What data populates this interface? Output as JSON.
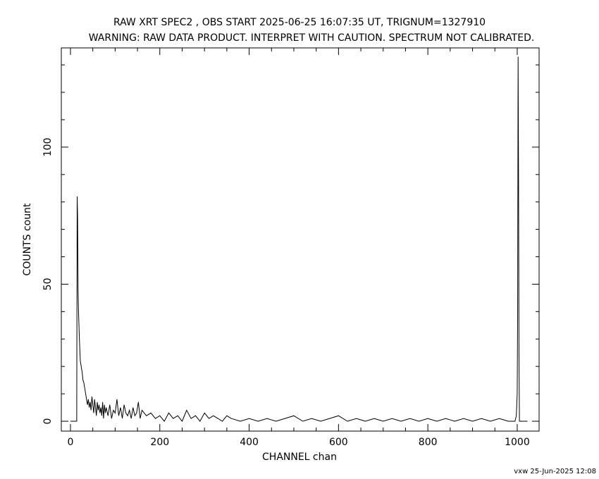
{
  "chart_data": {
    "type": "line",
    "title": "RAW XRT SPEC2 , OBS START 2025-06-25 16:07:35 UT, TRIGNUM=1327910",
    "subtitle": "WARNING: RAW DATA PRODUCT. INTERPRET WITH CAUTION. SPECTRUM NOT CALIBRATED.",
    "x_label": "CHANNEL  chan",
    "y_label": "COUNTS  count",
    "footer": "vxw 25-Jun-2025 12:08",
    "color": "#000000",
    "xlim": [
      -20.5,
      1049
    ],
    "ylim": [
      -3.6,
      136.2
    ],
    "xticks": [
      0,
      200,
      400,
      600,
      800,
      1000
    ],
    "yticks": [
      0,
      50,
      100
    ],
    "xminor": [
      50,
      100,
      150,
      250,
      300,
      350,
      450,
      500,
      550,
      650,
      700,
      750,
      850,
      900,
      950,
      1050
    ],
    "yminor": [
      10,
      20,
      30,
      40,
      60,
      70,
      80,
      90,
      110,
      120,
      130
    ],
    "x": [
      0,
      14,
      15,
      16,
      17,
      18,
      19,
      20,
      22,
      24,
      26,
      28,
      30,
      32,
      34,
      36,
      38,
      40,
      42,
      44,
      46,
      48,
      50,
      52,
      54,
      56,
      58,
      60,
      62,
      64,
      66,
      68,
      70,
      72,
      74,
      76,
      78,
      80,
      84,
      88,
      92,
      96,
      100,
      104,
      108,
      112,
      116,
      120,
      124,
      128,
      132,
      136,
      140,
      144,
      148,
      152,
      156,
      160,
      170,
      180,
      190,
      200,
      210,
      220,
      230,
      240,
      250,
      260,
      270,
      280,
      290,
      300,
      310,
      320,
      330,
      340,
      350,
      360,
      380,
      400,
      420,
      440,
      460,
      480,
      500,
      520,
      540,
      560,
      580,
      600,
      620,
      640,
      660,
      680,
      700,
      720,
      740,
      760,
      780,
      800,
      820,
      840,
      860,
      880,
      900,
      920,
      940,
      960,
      980,
      995,
      998,
      1000,
      1001,
      1002,
      1003,
      1004,
      1005,
      1023
    ],
    "values": [
      0,
      0,
      82,
      74,
      48,
      40,
      35,
      30,
      22,
      20,
      18,
      15,
      14,
      12,
      10,
      8,
      6,
      8,
      5,
      7,
      4,
      9,
      6,
      3,
      8,
      5,
      2,
      7,
      4,
      6,
      3,
      5,
      2,
      7,
      1,
      6,
      3,
      5,
      2,
      6,
      1,
      4,
      3,
      8,
      2,
      5,
      1,
      6,
      3,
      2,
      4,
      1,
      5,
      2,
      3,
      7,
      1,
      4,
      2,
      3,
      1,
      2,
      0,
      3,
      1,
      2,
      0,
      4,
      1,
      2,
      0,
      3,
      1,
      2,
      1,
      0,
      2,
      1,
      0,
      1,
      0,
      1,
      0,
      1,
      2,
      0,
      1,
      0,
      1,
      2,
      0,
      1,
      0,
      1,
      0,
      1,
      0,
      1,
      0,
      1,
      0,
      1,
      0,
      1,
      0,
      1,
      0,
      1,
      0,
      0,
      2,
      10,
      40,
      133,
      88,
      24,
      0,
      0
    ]
  }
}
